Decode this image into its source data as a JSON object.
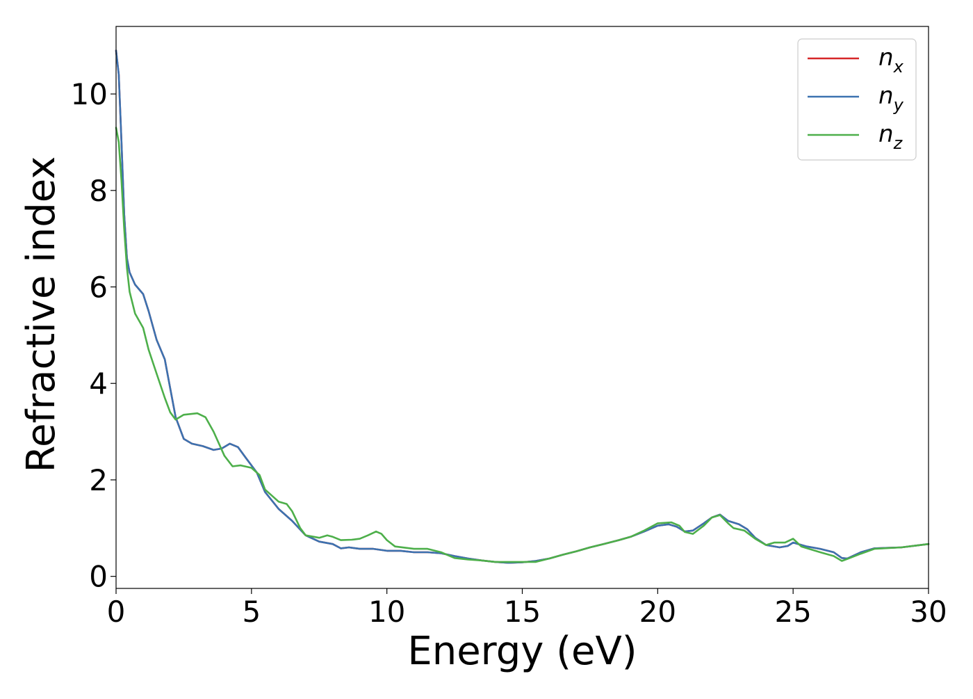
{
  "chart_data": {
    "type": "line",
    "xlabel": "Energy (eV)",
    "ylabel": "Refractive index",
    "xlim": [
      0,
      30
    ],
    "ylim": [
      -0.25,
      11.4
    ],
    "x_ticks": [
      0,
      5,
      10,
      15,
      20,
      25,
      30
    ],
    "y_ticks": [
      0,
      2,
      4,
      6,
      8,
      10
    ],
    "grid": false,
    "legend_position": "top-right",
    "series": [
      {
        "name": "n",
        "subscript": "x",
        "color": "#d62728",
        "points": [
          [
            0.0,
            10.9
          ],
          [
            0.1,
            10.4
          ],
          [
            0.2,
            9.0
          ],
          [
            0.3,
            7.5
          ],
          [
            0.4,
            6.6
          ],
          [
            0.5,
            6.3
          ],
          [
            0.7,
            6.05
          ],
          [
            1.0,
            5.85
          ],
          [
            1.2,
            5.5
          ],
          [
            1.5,
            4.9
          ],
          [
            1.8,
            4.5
          ],
          [
            2.0,
            3.9
          ],
          [
            2.2,
            3.3
          ],
          [
            2.5,
            2.85
          ],
          [
            2.8,
            2.75
          ],
          [
            3.2,
            2.7
          ],
          [
            3.6,
            2.62
          ],
          [
            3.9,
            2.65
          ],
          [
            4.2,
            2.75
          ],
          [
            4.5,
            2.68
          ],
          [
            4.8,
            2.45
          ],
          [
            5.2,
            2.15
          ],
          [
            5.5,
            1.75
          ],
          [
            6.0,
            1.4
          ],
          [
            6.5,
            1.15
          ],
          [
            7.0,
            0.85
          ],
          [
            7.5,
            0.72
          ],
          [
            8.0,
            0.67
          ],
          [
            8.3,
            0.58
          ],
          [
            8.6,
            0.6
          ],
          [
            9.0,
            0.57
          ],
          [
            9.5,
            0.57
          ],
          [
            10.0,
            0.53
          ],
          [
            10.5,
            0.53
          ],
          [
            11.0,
            0.5
          ],
          [
            11.5,
            0.5
          ],
          [
            12.0,
            0.48
          ],
          [
            12.5,
            0.42
          ],
          [
            13.0,
            0.37
          ],
          [
            13.5,
            0.33
          ],
          [
            14.0,
            0.3
          ],
          [
            14.5,
            0.28
          ],
          [
            15.0,
            0.29
          ],
          [
            15.5,
            0.32
          ],
          [
            16.0,
            0.37
          ],
          [
            16.5,
            0.45
          ],
          [
            17.0,
            0.52
          ],
          [
            17.5,
            0.6
          ],
          [
            18.0,
            0.67
          ],
          [
            18.5,
            0.74
          ],
          [
            19.0,
            0.82
          ],
          [
            19.5,
            0.93
          ],
          [
            20.0,
            1.05
          ],
          [
            20.4,
            1.08
          ],
          [
            20.7,
            1.03
          ],
          [
            21.0,
            0.93
          ],
          [
            21.3,
            0.95
          ],
          [
            21.7,
            1.1
          ],
          [
            22.0,
            1.22
          ],
          [
            22.3,
            1.28
          ],
          [
            22.6,
            1.15
          ],
          [
            23.0,
            1.08
          ],
          [
            23.3,
            0.98
          ],
          [
            23.6,
            0.8
          ],
          [
            24.0,
            0.65
          ],
          [
            24.5,
            0.6
          ],
          [
            24.8,
            0.63
          ],
          [
            25.0,
            0.7
          ],
          [
            25.5,
            0.62
          ],
          [
            26.0,
            0.57
          ],
          [
            26.5,
            0.5
          ],
          [
            26.8,
            0.38
          ],
          [
            27.0,
            0.37
          ],
          [
            27.5,
            0.5
          ],
          [
            28.0,
            0.58
          ],
          [
            29.0,
            0.6
          ],
          [
            30.0,
            0.67
          ]
        ]
      },
      {
        "name": "n",
        "subscript": "y",
        "color": "#3b72b0",
        "points": [
          [
            0.0,
            10.9
          ],
          [
            0.1,
            10.4
          ],
          [
            0.2,
            9.0
          ],
          [
            0.3,
            7.5
          ],
          [
            0.4,
            6.6
          ],
          [
            0.5,
            6.3
          ],
          [
            0.7,
            6.05
          ],
          [
            1.0,
            5.85
          ],
          [
            1.2,
            5.5
          ],
          [
            1.5,
            4.9
          ],
          [
            1.8,
            4.5
          ],
          [
            2.0,
            3.9
          ],
          [
            2.2,
            3.3
          ],
          [
            2.5,
            2.85
          ],
          [
            2.8,
            2.75
          ],
          [
            3.2,
            2.7
          ],
          [
            3.6,
            2.62
          ],
          [
            3.9,
            2.65
          ],
          [
            4.2,
            2.75
          ],
          [
            4.5,
            2.68
          ],
          [
            4.8,
            2.45
          ],
          [
            5.2,
            2.15
          ],
          [
            5.5,
            1.75
          ],
          [
            6.0,
            1.4
          ],
          [
            6.5,
            1.15
          ],
          [
            7.0,
            0.85
          ],
          [
            7.5,
            0.72
          ],
          [
            8.0,
            0.67
          ],
          [
            8.3,
            0.58
          ],
          [
            8.6,
            0.6
          ],
          [
            9.0,
            0.57
          ],
          [
            9.5,
            0.57
          ],
          [
            10.0,
            0.53
          ],
          [
            10.5,
            0.53
          ],
          [
            11.0,
            0.5
          ],
          [
            11.5,
            0.5
          ],
          [
            12.0,
            0.48
          ],
          [
            12.5,
            0.42
          ],
          [
            13.0,
            0.37
          ],
          [
            13.5,
            0.33
          ],
          [
            14.0,
            0.3
          ],
          [
            14.5,
            0.28
          ],
          [
            15.0,
            0.29
          ],
          [
            15.5,
            0.32
          ],
          [
            16.0,
            0.37
          ],
          [
            16.5,
            0.45
          ],
          [
            17.0,
            0.52
          ],
          [
            17.5,
            0.6
          ],
          [
            18.0,
            0.67
          ],
          [
            18.5,
            0.74
          ],
          [
            19.0,
            0.82
          ],
          [
            19.5,
            0.93
          ],
          [
            20.0,
            1.05
          ],
          [
            20.4,
            1.08
          ],
          [
            20.7,
            1.03
          ],
          [
            21.0,
            0.93
          ],
          [
            21.3,
            0.95
          ],
          [
            21.7,
            1.1
          ],
          [
            22.0,
            1.22
          ],
          [
            22.3,
            1.28
          ],
          [
            22.6,
            1.15
          ],
          [
            23.0,
            1.08
          ],
          [
            23.3,
            0.98
          ],
          [
            23.6,
            0.8
          ],
          [
            24.0,
            0.65
          ],
          [
            24.5,
            0.6
          ],
          [
            24.8,
            0.63
          ],
          [
            25.0,
            0.7
          ],
          [
            25.5,
            0.62
          ],
          [
            26.0,
            0.57
          ],
          [
            26.5,
            0.5
          ],
          [
            26.8,
            0.38
          ],
          [
            27.0,
            0.37
          ],
          [
            27.5,
            0.5
          ],
          [
            28.0,
            0.58
          ],
          [
            29.0,
            0.6
          ],
          [
            30.0,
            0.67
          ]
        ]
      },
      {
        "name": "n",
        "subscript": "z",
        "color": "#4daf4a",
        "points": [
          [
            0.0,
            9.3
          ],
          [
            0.1,
            9.0
          ],
          [
            0.2,
            8.2
          ],
          [
            0.3,
            7.2
          ],
          [
            0.4,
            6.4
          ],
          [
            0.5,
            5.9
          ],
          [
            0.7,
            5.45
          ],
          [
            1.0,
            5.15
          ],
          [
            1.2,
            4.7
          ],
          [
            1.5,
            4.2
          ],
          [
            1.8,
            3.7
          ],
          [
            2.0,
            3.4
          ],
          [
            2.2,
            3.25
          ],
          [
            2.5,
            3.35
          ],
          [
            3.0,
            3.38
          ],
          [
            3.3,
            3.3
          ],
          [
            3.6,
            3.0
          ],
          [
            4.0,
            2.5
          ],
          [
            4.3,
            2.28
          ],
          [
            4.6,
            2.3
          ],
          [
            5.0,
            2.25
          ],
          [
            5.3,
            2.1
          ],
          [
            5.5,
            1.8
          ],
          [
            6.0,
            1.55
          ],
          [
            6.3,
            1.5
          ],
          [
            6.5,
            1.35
          ],
          [
            6.8,
            1.0
          ],
          [
            7.0,
            0.85
          ],
          [
            7.5,
            0.8
          ],
          [
            7.8,
            0.85
          ],
          [
            8.0,
            0.82
          ],
          [
            8.3,
            0.75
          ],
          [
            8.7,
            0.76
          ],
          [
            9.0,
            0.78
          ],
          [
            9.3,
            0.85
          ],
          [
            9.6,
            0.93
          ],
          [
            9.8,
            0.88
          ],
          [
            10.0,
            0.75
          ],
          [
            10.3,
            0.62
          ],
          [
            11.0,
            0.57
          ],
          [
            11.5,
            0.57
          ],
          [
            12.0,
            0.5
          ],
          [
            12.5,
            0.38
          ],
          [
            13.0,
            0.35
          ],
          [
            13.5,
            0.33
          ],
          [
            14.0,
            0.3
          ],
          [
            14.5,
            0.3
          ],
          [
            15.0,
            0.3
          ],
          [
            15.5,
            0.3
          ],
          [
            16.0,
            0.37
          ],
          [
            16.5,
            0.45
          ],
          [
            17.0,
            0.52
          ],
          [
            17.5,
            0.6
          ],
          [
            18.0,
            0.67
          ],
          [
            18.5,
            0.74
          ],
          [
            19.0,
            0.82
          ],
          [
            19.5,
            0.95
          ],
          [
            20.0,
            1.1
          ],
          [
            20.5,
            1.12
          ],
          [
            20.8,
            1.05
          ],
          [
            21.0,
            0.92
          ],
          [
            21.3,
            0.88
          ],
          [
            21.7,
            1.05
          ],
          [
            22.0,
            1.22
          ],
          [
            22.3,
            1.27
          ],
          [
            22.6,
            1.1
          ],
          [
            22.8,
            1.0
          ],
          [
            23.2,
            0.95
          ],
          [
            23.6,
            0.78
          ],
          [
            24.0,
            0.65
          ],
          [
            24.3,
            0.7
          ],
          [
            24.7,
            0.7
          ],
          [
            25.0,
            0.78
          ],
          [
            25.3,
            0.62
          ],
          [
            26.0,
            0.5
          ],
          [
            26.5,
            0.42
          ],
          [
            26.8,
            0.32
          ],
          [
            27.0,
            0.36
          ],
          [
            27.5,
            0.47
          ],
          [
            28.0,
            0.57
          ],
          [
            29.0,
            0.6
          ],
          [
            30.0,
            0.67
          ]
        ]
      }
    ]
  }
}
